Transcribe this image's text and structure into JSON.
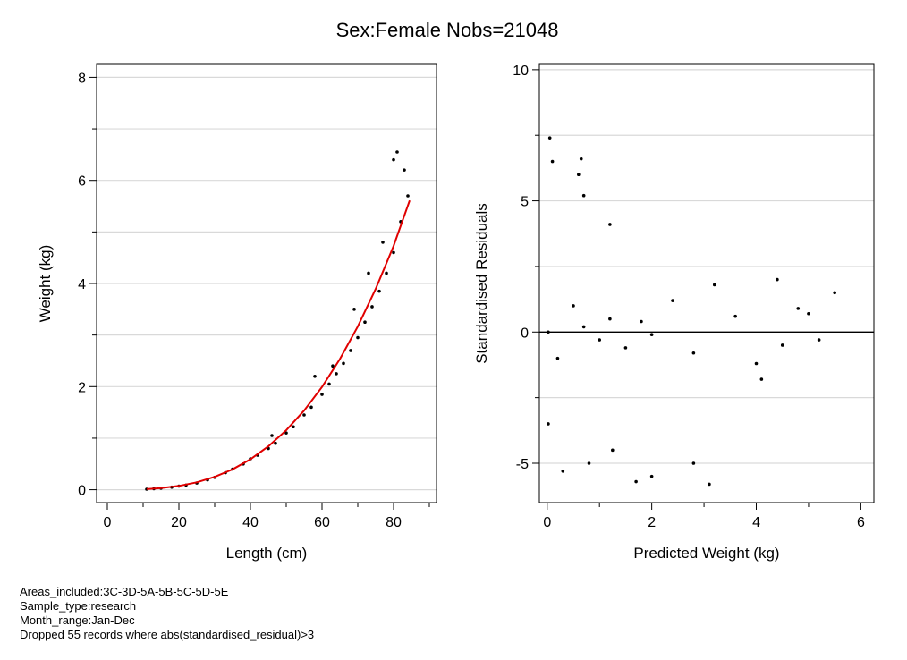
{
  "title": "Sex:Female  Nobs=21048",
  "notes": [
    "Areas_included:3C-3D-5A-5B-5C-5D-5E",
    "Sample_type:research",
    "Month_range:Jan-Dec",
    "Dropped 55 records where abs(standardised_residual)>3"
  ],
  "colors": {
    "points": "#000000",
    "fit_line": "#e00000",
    "grid": "#d9d9d9",
    "zero_line": "#000000"
  },
  "chart_data": [
    {
      "type": "scatter",
      "title": "",
      "xlabel": "Length (cm)",
      "ylabel": "Weight (kg)",
      "xlim": [
        -3,
        92
      ],
      "ylim": [
        -0.25,
        8.25
      ],
      "xticks": [
        0,
        20,
        40,
        60,
        80
      ],
      "yticks": [
        0,
        2,
        4,
        6,
        8
      ],
      "grid": true,
      "series": [
        {
          "kind": "points",
          "x": [
            11,
            13,
            15,
            18,
            20,
            22,
            25,
            28,
            30,
            33,
            35,
            38,
            40,
            42,
            45,
            47,
            50,
            52,
            55,
            57,
            60,
            62,
            64,
            66,
            68,
            70,
            72,
            74,
            76,
            78,
            80,
            82,
            84,
            46,
            58,
            63,
            69,
            73,
            77,
            80,
            81,
            83
          ],
          "y": [
            0.01,
            0.02,
            0.03,
            0.05,
            0.07,
            0.09,
            0.13,
            0.19,
            0.24,
            0.33,
            0.4,
            0.5,
            0.6,
            0.67,
            0.8,
            0.9,
            1.1,
            1.22,
            1.45,
            1.6,
            1.85,
            2.05,
            2.25,
            2.45,
            2.7,
            2.95,
            3.25,
            3.55,
            3.85,
            4.2,
            4.6,
            5.2,
            5.7,
            1.05,
            2.2,
            2.4,
            3.5,
            4.2,
            4.8,
            6.4,
            6.55,
            6.2
          ]
        },
        {
          "kind": "fit_line",
          "x": [
            11,
            15,
            20,
            25,
            30,
            35,
            40,
            45,
            50,
            55,
            60,
            65,
            70,
            75,
            80,
            84.5
          ],
          "y": [
            0.012,
            0.031,
            0.074,
            0.144,
            0.249,
            0.396,
            0.591,
            0.841,
            1.153,
            1.535,
            1.993,
            2.534,
            3.166,
            3.895,
            4.727,
            5.61
          ]
        }
      ]
    },
    {
      "type": "scatter",
      "title": "",
      "xlabel": "Predicted Weight (kg)",
      "ylabel": "Standardised Residuals",
      "xlim": [
        -0.15,
        6.25
      ],
      "ylim": [
        -6.5,
        10.2
      ],
      "xticks": [
        0,
        2,
        4,
        6
      ],
      "yticks": [
        -5,
        0,
        5,
        10
      ],
      "grid": true,
      "reference_line_y": 0,
      "series": [
        {
          "kind": "points",
          "x": [
            0.02,
            0.05,
            0.1,
            0.2,
            0.5,
            0.7,
            1.0,
            1.2,
            1.5,
            1.8,
            2.0,
            2.4,
            2.8,
            3.2,
            3.6,
            4.0,
            4.4,
            4.8,
            5.2,
            5.5,
            0.02,
            0.6,
            0.65,
            0.7,
            1.2,
            1.25,
            2.0,
            2.8,
            3.1,
            0.3,
            0.8,
            1.7,
            4.1,
            4.5,
            5.0
          ],
          "y": [
            0.0,
            7.4,
            6.5,
            -1.0,
            1.0,
            0.2,
            -0.3,
            0.5,
            -0.6,
            0.4,
            -0.1,
            1.2,
            -0.8,
            1.8,
            0.6,
            -1.2,
            2.0,
            0.9,
            -0.3,
            1.5,
            -3.5,
            6.0,
            6.6,
            5.2,
            4.1,
            -4.5,
            -5.5,
            -5.0,
            -5.8,
            -5.3,
            -5.0,
            -5.7,
            -1.8,
            -0.5,
            0.7
          ]
        }
      ]
    }
  ]
}
